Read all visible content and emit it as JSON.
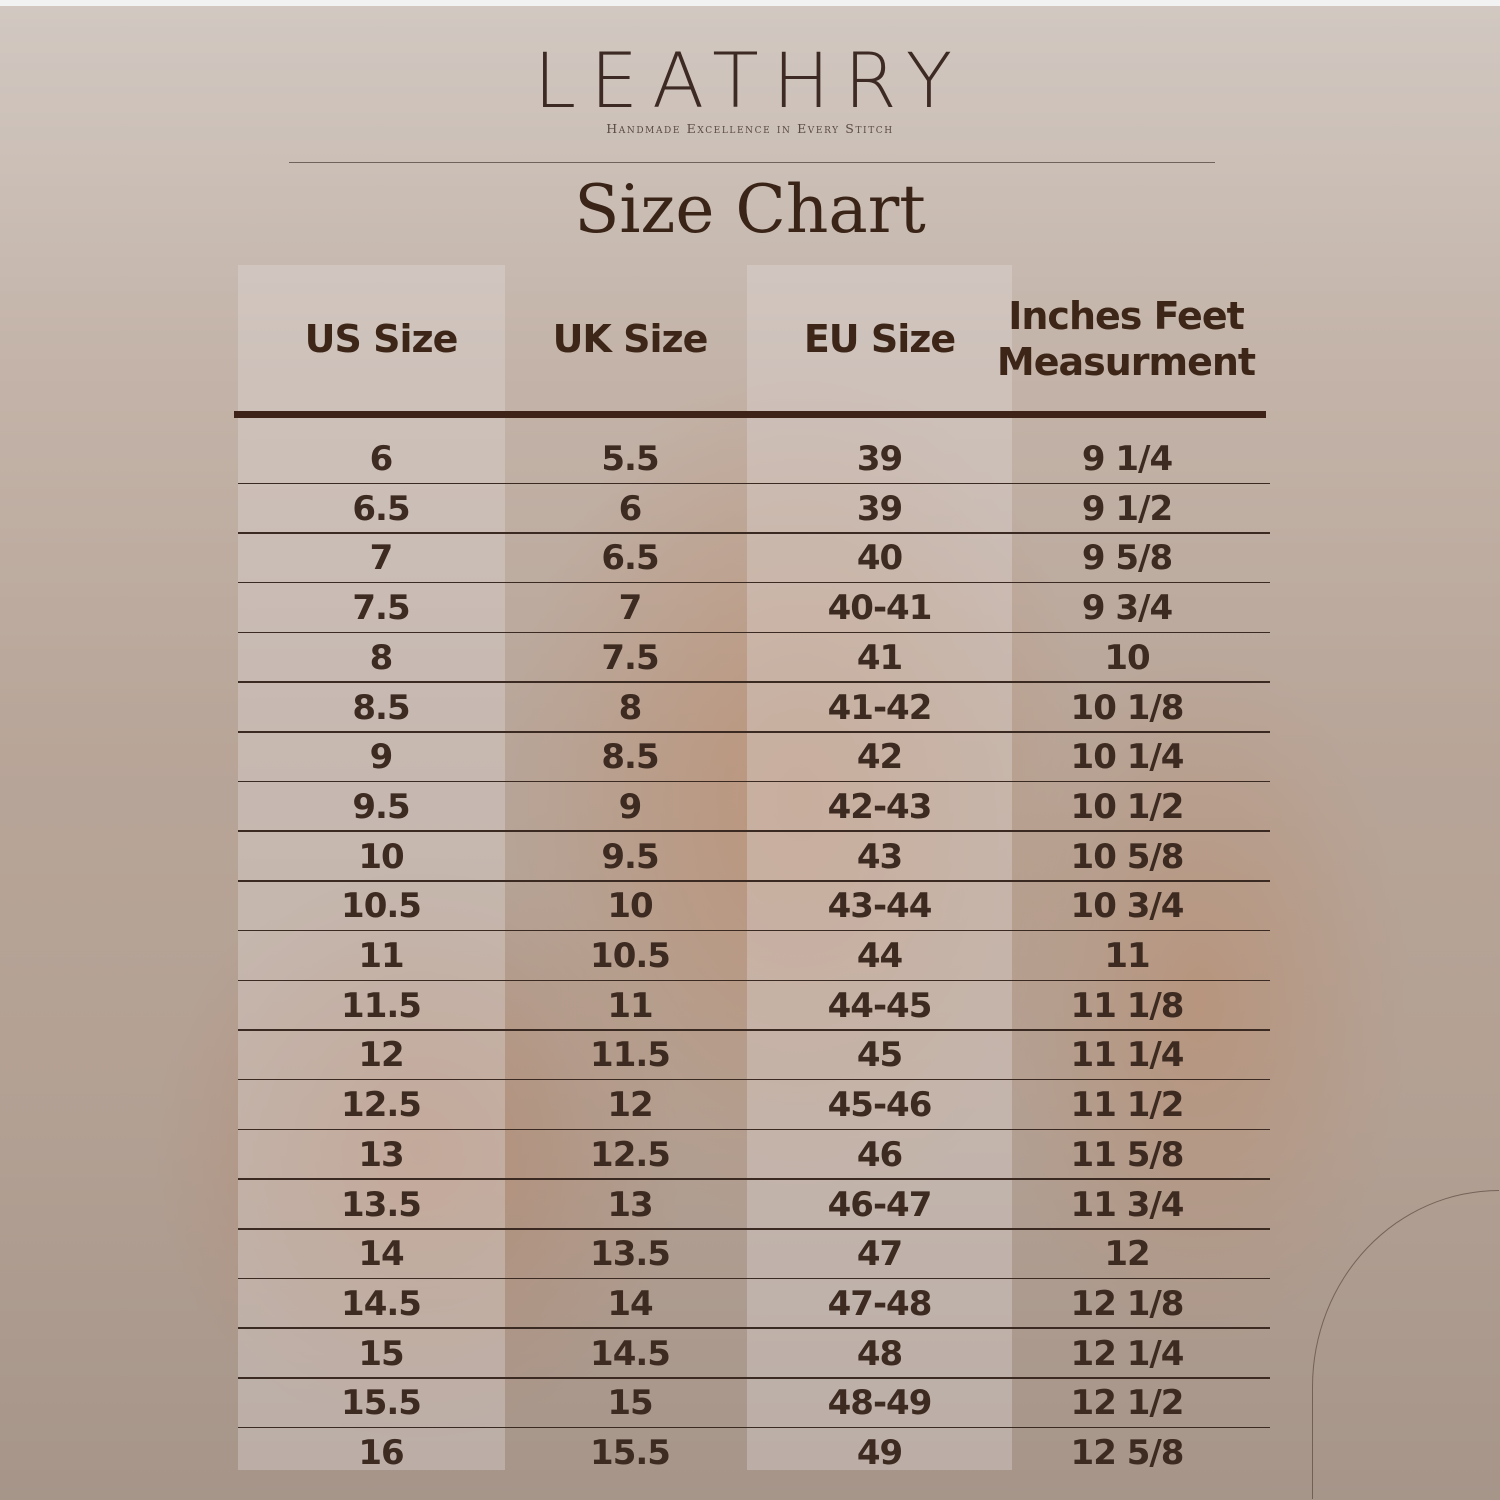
{
  "brand": {
    "logo": "LEATHRY",
    "tagline": "Handmade Excellence in Every Stitch"
  },
  "title": "Size Chart",
  "table": {
    "headers": [
      "US Size",
      "UK Size",
      "EU Size",
      "Inches Feet Measurment"
    ],
    "rows": [
      [
        "6",
        "5.5",
        "39",
        "9 1/4"
      ],
      [
        "6.5",
        "6",
        "39",
        "9 1/2"
      ],
      [
        "7",
        "6.5",
        "40",
        "9 5/8"
      ],
      [
        "7.5",
        "7",
        "40-41",
        "9 3/4"
      ],
      [
        "8",
        "7.5",
        "41",
        "10"
      ],
      [
        "8.5",
        "8",
        "41-42",
        "10 1/8"
      ],
      [
        "9",
        "8.5",
        "42",
        "10 1/4"
      ],
      [
        "9.5",
        "9",
        "42-43",
        "10 1/2"
      ],
      [
        "10",
        "9.5",
        "43",
        "10 5/8"
      ],
      [
        "10.5",
        "10",
        "43-44",
        "10 3/4"
      ],
      [
        "11",
        "10.5",
        "44",
        "11"
      ],
      [
        "11.5",
        "11",
        "44-45",
        "11 1/8"
      ],
      [
        "12",
        "11.5",
        "45",
        "11 1/4"
      ],
      [
        "12.5",
        "12",
        "45-46",
        "11 1/2"
      ],
      [
        "13",
        "12.5",
        "46",
        "11 5/8"
      ],
      [
        "13.5",
        "13",
        "46-47",
        "11 3/4"
      ],
      [
        "14",
        "13.5",
        "47",
        "12"
      ],
      [
        "14.5",
        "14",
        "47-48",
        "12 1/8"
      ],
      [
        "15",
        "14.5",
        "48",
        "12 1/4"
      ],
      [
        "15.5",
        "15",
        "48-49",
        "12 1/2"
      ],
      [
        "16",
        "15.5",
        "49",
        "12 5/8"
      ]
    ]
  },
  "colors": {
    "text": "#3d2a20",
    "header_bar": "#3e2418"
  }
}
